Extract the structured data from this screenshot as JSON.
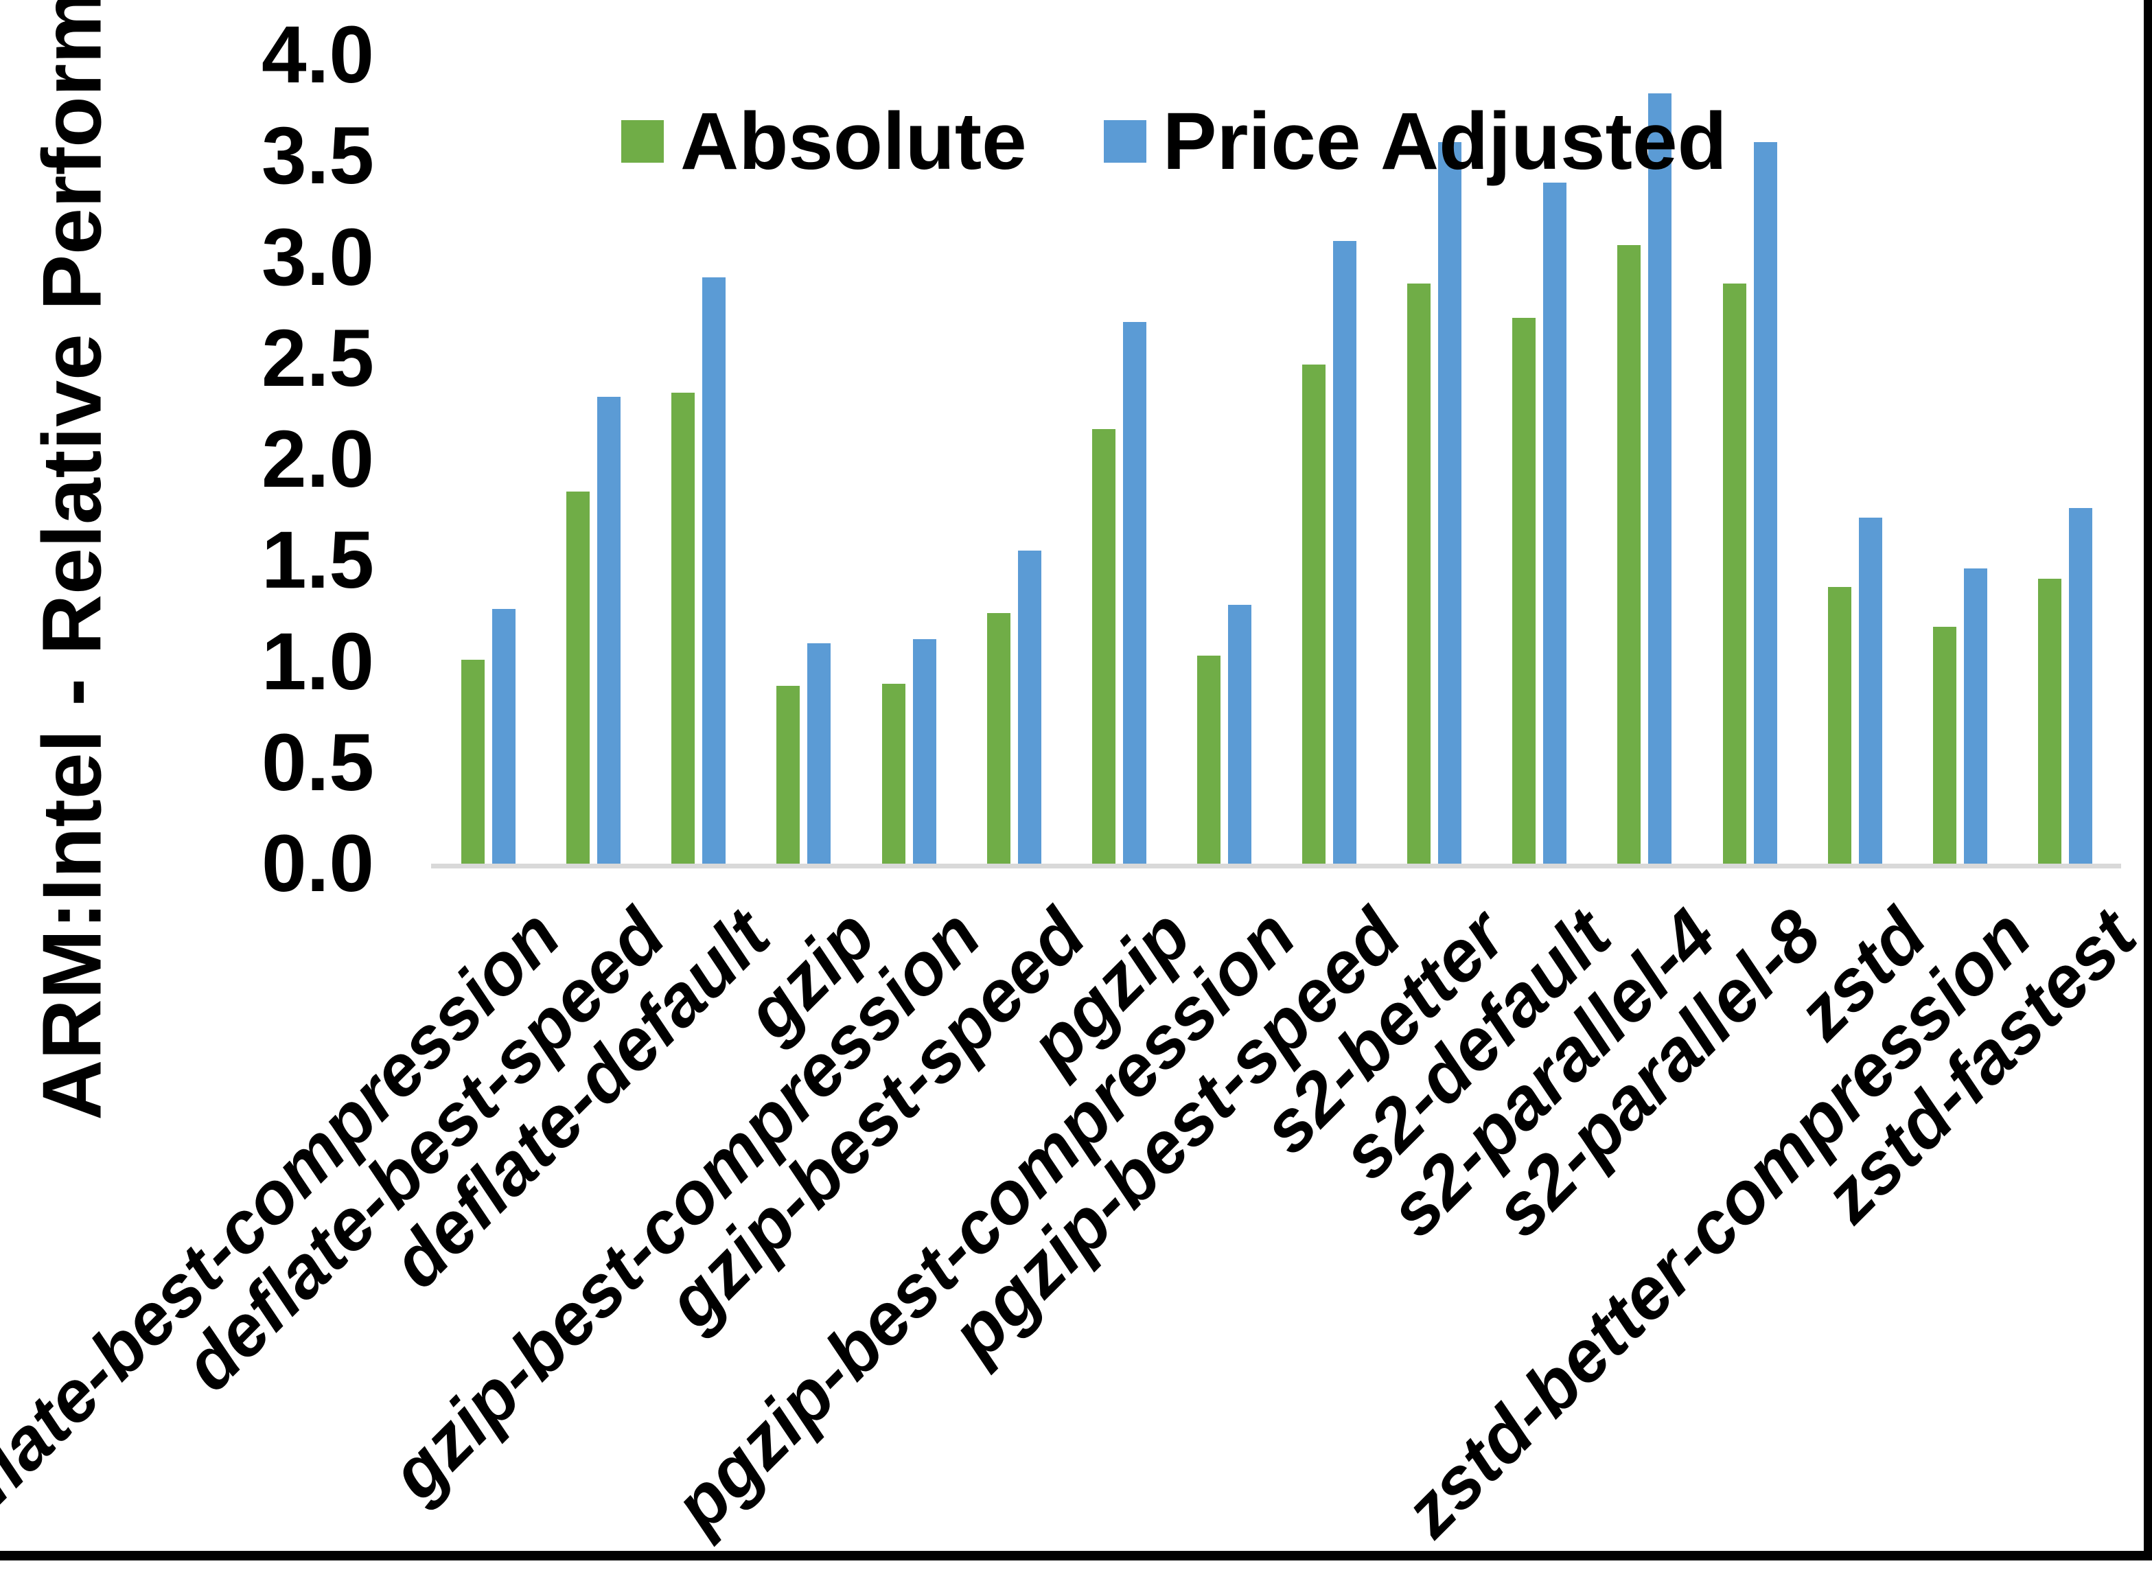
{
  "chart_data": {
    "type": "bar",
    "title": "",
    "xlabel": "",
    "ylabel": "ARM:Intel - Relative Performance",
    "ylim": [
      0.0,
      4.0
    ],
    "ytick_step": 0.5,
    "ytick_labels": [
      "4.0",
      "3.5",
      "3.0",
      "2.5",
      "2.0",
      "1.5",
      "1.0",
      "0.5",
      "0.0"
    ],
    "grid": false,
    "legend_position": "top-center",
    "categories": [
      "deflate-best-compression",
      "deflate-best-speed",
      "deflate-default",
      "gzip",
      "gzip-best-compression",
      "gzip-best-speed",
      "pgzip",
      "pgzip-best-compression",
      "pgzip-best-speed",
      "s2-better",
      "s2-default",
      "s2-parallel-4",
      "s2-parallel-8",
      "zstd",
      "zstd-better-compression",
      "zstd-fastest"
    ],
    "series": [
      {
        "name": "Absolute",
        "color": "#70AD47",
        "values": [
          1.01,
          1.84,
          2.33,
          0.88,
          0.89,
          1.24,
          2.15,
          1.03,
          2.47,
          2.87,
          2.7,
          3.06,
          2.87,
          1.37,
          1.17,
          1.41
        ]
      },
      {
        "name": "Price Adjusted",
        "color": "#5B9BD5",
        "values": [
          1.26,
          2.31,
          2.9,
          1.09,
          1.11,
          1.55,
          2.68,
          1.28,
          3.08,
          3.57,
          3.37,
          3.81,
          3.57,
          1.71,
          1.46,
          1.76
        ]
      }
    ],
    "axis_line_color": "#D9D9D9",
    "text_color": "#000000",
    "background_color": "#FFFFFF"
  }
}
